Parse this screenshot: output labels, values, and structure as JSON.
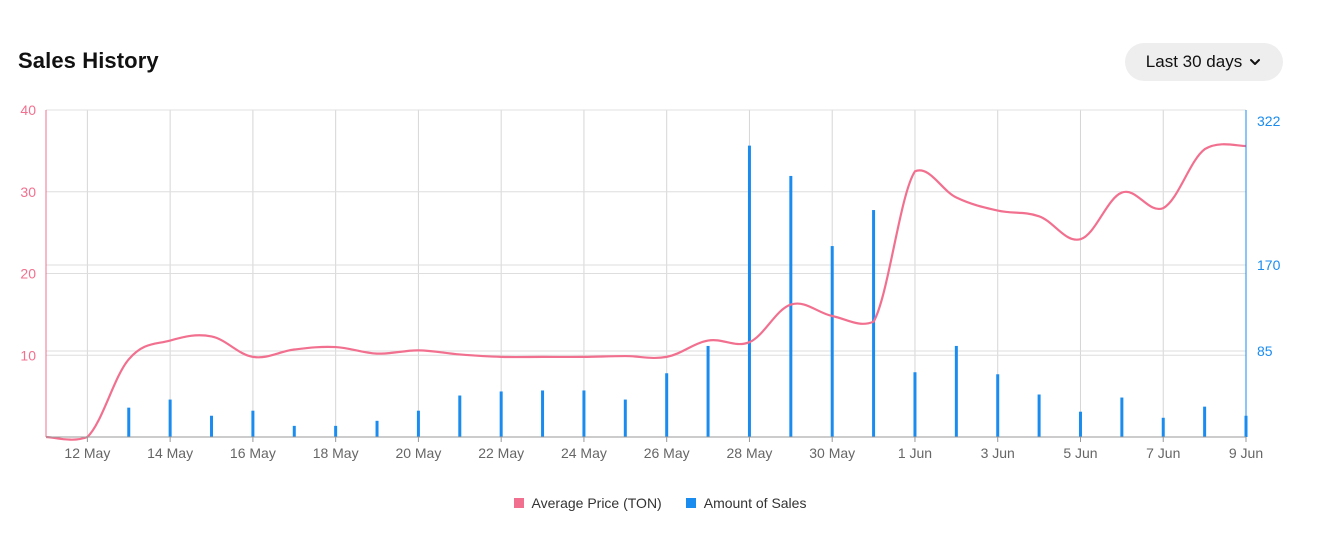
{
  "header": {
    "title": "Sales History",
    "range_label": "Last 30 days"
  },
  "chart_data": {
    "type": "line",
    "x": [
      "11 May",
      "12 May",
      "13 May",
      "14 May",
      "15 May",
      "16 May",
      "17 May",
      "18 May",
      "19 May",
      "20 May",
      "21 May",
      "22 May",
      "23 May",
      "24 May",
      "25 May",
      "26 May",
      "27 May",
      "28 May",
      "29 May",
      "30 May",
      "31 May",
      "1 Jun",
      "2 Jun",
      "3 Jun",
      "4 Jun",
      "5 Jun",
      "6 Jun",
      "7 Jun",
      "8 Jun",
      "9 Jun"
    ],
    "x_tick_labels": [
      "12 May",
      "14 May",
      "16 May",
      "18 May",
      "20 May",
      "22 May",
      "24 May",
      "26 May",
      "28 May",
      "30 May",
      "1 Jun",
      "3 Jun",
      "5 Jun",
      "7 Jun",
      "9 Jun"
    ],
    "series": [
      {
        "name": "Average Price (TON)",
        "axis": "left",
        "type": "line",
        "color": "#f2708f",
        "values": [
          0,
          0,
          9.5,
          11.8,
          12.3,
          9.8,
          10.7,
          11,
          10.2,
          10.6,
          10.1,
          9.8,
          9.8,
          9.8,
          9.9,
          9.8,
          11.8,
          11.6,
          16.2,
          14.8,
          14.1,
          32.5,
          29.3,
          27.7,
          27,
          24.2,
          29.9,
          28,
          35.2,
          35.6
        ]
      },
      {
        "name": "Amount of Sales",
        "axis": "right",
        "type": "bar",
        "color": "#1a8cf0",
        "values": [
          null,
          null,
          29,
          37,
          21,
          26,
          11,
          11,
          16,
          26,
          41,
          45,
          46,
          46,
          37,
          63,
          90,
          296,
          264,
          190,
          228,
          64,
          90,
          62,
          42,
          25,
          39,
          19,
          30,
          21
        ]
      }
    ],
    "y_left": {
      "ticks": [
        10,
        20,
        30,
        40
      ],
      "range": [
        0,
        40
      ],
      "color": "#f2708f"
    },
    "y_right": {
      "ticks": [
        85,
        170,
        322
      ],
      "color": "#1a8cf0"
    },
    "grid": true,
    "legend_position": "bottom-center"
  }
}
